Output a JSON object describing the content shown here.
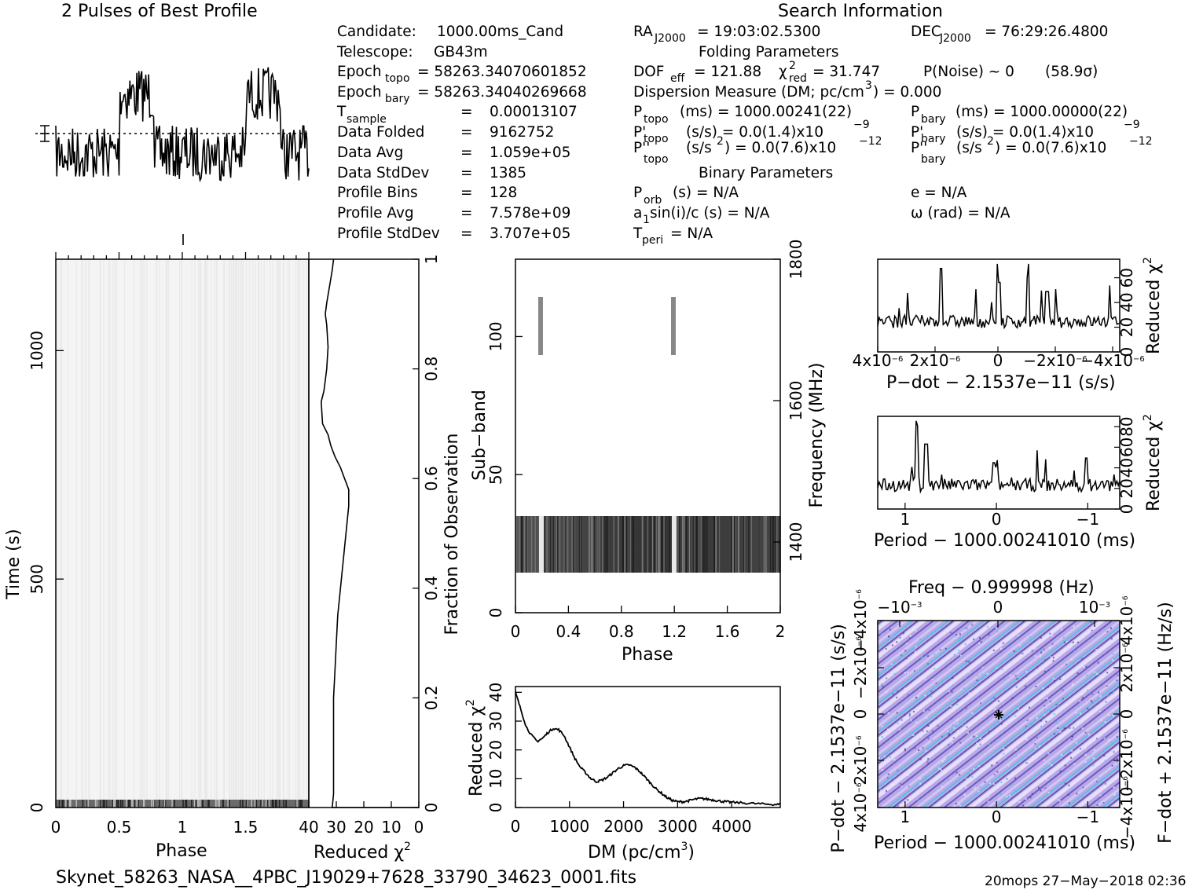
{
  "top_title": "2 Pulses of Best Profile",
  "search_title": "Search Information",
  "info_left": {
    "candidate_label": "Candidate:",
    "candidate": "1000.00ms_Cand",
    "telescope_label": "Telescope:",
    "telescope": "GB43m",
    "epoch_topo_label": "Epoch",
    "epoch_topo_sub": "topo",
    "epoch_topo": "= 58263.34070601852",
    "epoch_bary_label": "Epoch",
    "epoch_bary_sub": "bary",
    "epoch_bary": "= 58263.3404026966​8",
    "tsample_label": "T",
    "tsample_sub": "sample",
    "tsample": "0.00013107",
    "data_folded_label": "Data Folded",
    "data_folded": "9162752",
    "data_avg_label": "Data Avg",
    "data_avg": "1.059e+05",
    "data_std_label": "Data StdDev",
    "data_std": "1385",
    "profile_bins_label": "Profile Bins",
    "profile_bins": "128",
    "profile_avg_label": "Profile Avg",
    "profile_avg": "7.578e+09",
    "profile_std_label": "Profile StdDev",
    "profile_std": "3.707e+05",
    "eq": "="
  },
  "info_mid": {
    "ra_label": "RA",
    "ra_sub": "J2000",
    "ra": "= 19:03:02.5300",
    "folding_title": "Folding Parameters",
    "dof_label": "DOF",
    "dof_sub": "eff",
    "dof": "= 121.88",
    "chi_label": "χ",
    "chi_sup": "2",
    "chi_sub": "red",
    "chi": "= 31.747",
    "pnoise": "P(Noise) ~ 0",
    "sigma": "(58.9σ)",
    "dm_line": "Dispersion Measure (DM; pc/cm",
    "dm_sup": "3",
    "dm_val": ") = 0.000",
    "ptopo_label": "P",
    "ptopo_sub": "topo",
    "ptopo": "(ms) =  1000.00241(22)",
    "pdtopo_label": "P'",
    "pdtopo_sub": "topo",
    "pdtopo": "(s/s) = 0.0(1.4)x10",
    "pdtopo_exp": "−9",
    "pddtopo_label": "P''",
    "pddtopo_sub": "topo",
    "pddtopo": "(s/s",
    "pddtopo_sup": "2",
    "pddtopo_rest": ") = 0.0(7.6)x10",
    "pddtopo_exp": "−12",
    "binary_title": "Binary Parameters",
    "porb_label": "P",
    "porb_sub": "orb",
    "porb": "(s) = N/A",
    "a1_label": "a",
    "a1_sub": "1",
    "a1": "sin(i)/c (s) = N/A",
    "tperi_label": "T",
    "tperi_sub": "peri",
    "tperi": "= N/A"
  },
  "info_right": {
    "dec_label": "DEC",
    "dec_sub": "J2000",
    "dec": "= 76:29:26.4800",
    "pbary_label": "P",
    "pbary_sub": "bary",
    "pbary": "(ms) =  1000.00000(22)",
    "pdbary_label": "P'",
    "pdbary_sub": "bary",
    "pdbary": "(s/s) = 0.0(1.4)x10",
    "pdbary_exp": "−9",
    "pddbary_label": "P''",
    "pddbary_sub": "bary",
    "pddbary": "(s/s",
    "pddbary_sup": "2",
    "pddbary_rest": ") = 0.0(7.6)x10",
    "pddbary_exp": "−12",
    "e": "e = N/A",
    "omega": "ω (rad) = N/A"
  },
  "footer_file": "Skynet_58263_NASA__4PBC_J19029+7628_33790_34623_0001.fits",
  "footer_stamp": "20mops 27−May−2018 02:36",
  "colors": {
    "ink": "#000000",
    "ppdot_base": "#b8a8e8",
    "ppdot_light": "#e8e0f8",
    "ppdot_cyan": "#3fc8e0",
    "ppdot_dark": "#4a3c9c"
  },
  "chart_data": [
    {
      "id": "time_phase",
      "type": "heatmap",
      "xlabel": "Phase",
      "ylabel": "Time (s)",
      "xlim": [
        0,
        2
      ],
      "ylim": [
        0,
        1200
      ],
      "xticks": [
        "0",
        "0.5",
        "1",
        "1.5"
      ],
      "yticks": [
        "0",
        "500",
        "1000"
      ]
    },
    {
      "id": "chi_vs_fraction",
      "type": "line",
      "xlabel": "Reduced χ",
      "xlabel_sup": "2",
      "ylabel": "Fraction of Observation",
      "xlim": [
        40,
        0
      ],
      "ylim": [
        0,
        1
      ],
      "xticks": [
        "40",
        "30",
        "20",
        "10",
        "0"
      ],
      "yticks": [
        "0",
        "0.2",
        "0.4",
        "0.6",
        "0.8",
        "1"
      ],
      "x": [
        31.5,
        31.0,
        31.0,
        31.0,
        31.0,
        31.0,
        30.5,
        30.0,
        29.5,
        28.5,
        27.5,
        26.5,
        25.5,
        25.5,
        27.0,
        28.5,
        30.5,
        32.0,
        33.0,
        35.0,
        35.5,
        34.5,
        33.5,
        33.0,
        33.5,
        34.0,
        33.5,
        32.5,
        31.5,
        31.0
      ],
      "y": [
        0.0,
        0.025,
        0.05,
        0.08,
        0.12,
        0.2,
        0.25,
        0.3,
        0.35,
        0.4,
        0.45,
        0.5,
        0.55,
        0.58,
        0.6,
        0.62,
        0.64,
        0.66,
        0.68,
        0.7,
        0.74,
        0.76,
        0.8,
        0.84,
        0.88,
        0.9,
        0.92,
        0.95,
        0.98,
        1.0
      ]
    },
    {
      "id": "subband_phase",
      "type": "heatmap",
      "xlabel": "Phase",
      "ylabel": "Sub−band",
      "y2label": "Frequency (MHz)",
      "xlim": [
        0,
        2
      ],
      "ylim": [
        0,
        128
      ],
      "y2lim": [
        1300,
        1800
      ],
      "xticks": [
        "0",
        "0.4",
        "0.8",
        "1.2",
        "1.6",
        "2"
      ],
      "yticks": [
        "0",
        "50",
        "100"
      ],
      "y2ticks": [
        "1400",
        "1600",
        "1800"
      ]
    },
    {
      "id": "dm_curve",
      "type": "line",
      "xlabel": "DM (pc/cm",
      "xlabel_sup": "3",
      "xlabel_end": ")",
      "ylabel": "Reduced χ",
      "ylabel_sup": "2",
      "xlim": [
        0,
        4900
      ],
      "ylim": [
        0,
        42
      ],
      "xticks": [
        "0",
        "1000",
        "2000",
        "3000",
        "4000"
      ],
      "yticks": [
        "0",
        "10",
        "20",
        "30",
        "40"
      ],
      "x": [
        0,
        100,
        200,
        300,
        400,
        500,
        600,
        700,
        800,
        900,
        1000,
        1100,
        1200,
        1300,
        1400,
        1500,
        1600,
        1700,
        1800,
        1900,
        2000,
        2100,
        2200,
        2300,
        2400,
        2500,
        2600,
        2700,
        2800,
        2900,
        3000,
        3100,
        3200,
        3300,
        3400,
        3500,
        3600,
        3700,
        3800,
        3900,
        4000,
        4200,
        4400,
        4600,
        4800,
        4900
      ],
      "y": [
        40,
        34,
        28,
        25,
        23,
        24,
        26,
        27.5,
        27,
        25,
        21,
        17,
        14,
        12,
        10,
        9,
        9.5,
        10.5,
        12,
        13.5,
        14.5,
        14.8,
        14,
        12.5,
        10.5,
        8.5,
        6.5,
        5,
        3.5,
        2.5,
        2,
        2,
        2.3,
        2.8,
        3.1,
        3,
        2.8,
        2.5,
        2.2,
        2,
        1.8,
        1.6,
        1.4,
        1.2,
        1.1,
        1
      ]
    },
    {
      "id": "pdot_curve",
      "type": "line",
      "xlabel": "P−dot − 2.1537e−11 (s/s)",
      "ylabel": "Reduced χ",
      "ylabel_sup": "2",
      "xlim": [
        4e-06,
        -4.5e-06
      ],
      "ylim": [
        0,
        75
      ],
      "xticks": [
        "4x10",
        "2x10",
        "0",
        "−2x10",
        "−4x10"
      ],
      "xtick_exp": "−6",
      "yticks": [
        "0",
        "20",
        "40",
        "60"
      ]
    },
    {
      "id": "period_curve",
      "type": "line",
      "xlabel": "Period − 1000.00241010 (ms)",
      "ylabel": "Reduced χ",
      "ylabel_sup": "2",
      "xlim": [
        1.3,
        -1.35
      ],
      "ylim": [
        0,
        90
      ],
      "xticks": [
        "1",
        "0",
        "−1"
      ],
      "yticks": [
        "0",
        "20",
        "40",
        "60",
        "80"
      ]
    },
    {
      "id": "ppdot_plane",
      "type": "heatmap",
      "title": "Freq − 0.999998 (Hz)",
      "xlabel": "Period − 1000.00241010 (ms)",
      "ylabel": "P−dot − 2.1537e−11 (s/s)",
      "y2label": "F−dot + 2.1537e−11 (Hz/s)",
      "xticks": [
        "1",
        "0",
        "−1"
      ],
      "top_ticks": [
        "−10",
        "0",
        "10"
      ],
      "top_exp": "−3",
      "yticks": [
        "4x10",
        "2x10",
        "0",
        "−2x10",
        "−4x10"
      ],
      "ytick_exp": "−6",
      "y2ticks": [
        "−4x10",
        "−2x10",
        "0",
        "2x10",
        "4x10"
      ],
      "y2tick_exp": "−6"
    }
  ]
}
